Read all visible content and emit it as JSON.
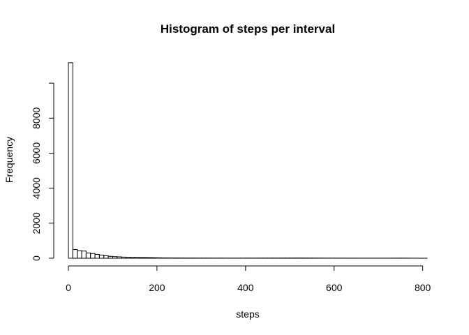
{
  "chart_data": {
    "type": "bar",
    "title": "Histogram of steps per interval",
    "xlabel": "steps",
    "ylabel": "Frequency",
    "xlim": [
      0,
      810
    ],
    "ylim": [
      0,
      11200
    ],
    "xticks": [
      0,
      200,
      400,
      600,
      800
    ],
    "yticks": [
      0,
      2000,
      4000,
      6000,
      8000
    ],
    "bin_width": 10,
    "bin_start": 0,
    "values": [
      11166,
      500,
      430,
      410,
      300,
      270,
      220,
      180,
      140,
      110,
      90,
      80,
      65,
      55,
      50,
      45,
      40,
      38,
      35,
      30,
      25,
      20,
      18,
      16,
      15,
      14,
      13,
      12,
      12,
      11,
      10,
      10,
      9,
      9,
      9,
      8,
      8,
      8,
      8,
      8,
      9,
      9,
      9,
      10,
      10,
      10,
      11,
      11,
      12,
      13,
      14,
      15,
      14,
      13,
      12,
      11,
      10,
      9,
      8,
      8,
      7,
      7,
      6,
      6,
      6,
      5,
      5,
      5,
      5,
      5,
      5,
      5,
      5,
      6,
      7,
      8,
      6,
      4,
      3,
      2,
      2
    ]
  }
}
